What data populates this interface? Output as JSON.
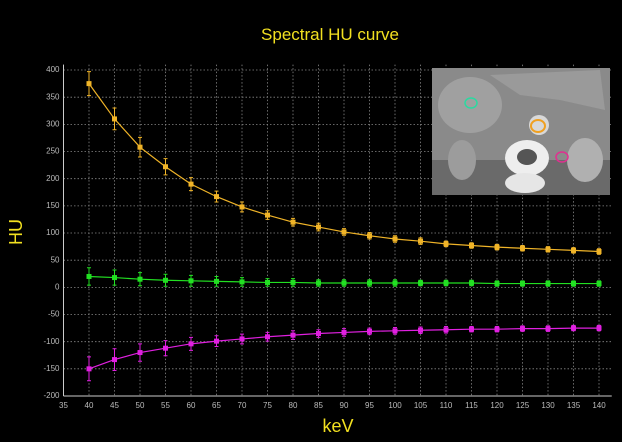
{
  "chart_data": {
    "type": "line",
    "title": "Spectral HU curve",
    "x_label": "keV",
    "y_label": "HU",
    "x": [
      40,
      45,
      50,
      55,
      60,
      65,
      70,
      75,
      80,
      85,
      90,
      95,
      100,
      105,
      110,
      115,
      120,
      125,
      130,
      135,
      140
    ],
    "series": [
      {
        "color": "#f0b428",
        "values": [
          375,
          310,
          258,
          222,
          190,
          167,
          148,
          133,
          120,
          111,
          102,
          95,
          89,
          85,
          80,
          77,
          74,
          72,
          70,
          68,
          66
        ],
        "errors": [
          22,
          20,
          18,
          15,
          12,
          10,
          9,
          8,
          7,
          7,
          6,
          6,
          6,
          6,
          5,
          5,
          5,
          5,
          5,
          5,
          5
        ]
      },
      {
        "color": "#22e022",
        "values": [
          20,
          18,
          15,
          13,
          12,
          11,
          10,
          9,
          9,
          8,
          8,
          8,
          8,
          8,
          8,
          8,
          7,
          7,
          7,
          7,
          7
        ],
        "errors": [
          16,
          14,
          12,
          11,
          10,
          9,
          8,
          7,
          7,
          6,
          6,
          6,
          6,
          5,
          5,
          5,
          5,
          5,
          5,
          5,
          5
        ]
      },
      {
        "color": "#e020e0",
        "values": [
          -150,
          -133,
          -120,
          -112,
          -104,
          -99,
          -95,
          -91,
          -88,
          -85,
          -83,
          -81,
          -80,
          -79,
          -78,
          -77,
          -77,
          -76,
          -76,
          -75,
          -75
        ],
        "errors": [
          22,
          20,
          16,
          14,
          12,
          10,
          9,
          8,
          8,
          7,
          7,
          6,
          6,
          6,
          6,
          5,
          5,
          5,
          5,
          5,
          5
        ]
      }
    ],
    "xlim": [
      35,
      142.5
    ],
    "ylim": [
      -200,
      410
    ],
    "xticks": [
      35,
      40,
      45,
      50,
      55,
      60,
      65,
      70,
      75,
      80,
      85,
      90,
      95,
      100,
      105,
      110,
      115,
      120,
      125,
      130,
      135,
      140
    ],
    "yticks": [
      -200,
      -150,
      -100,
      -50,
      0,
      50,
      100,
      150,
      200,
      250,
      300,
      350,
      400
    ],
    "grid": true
  }
}
